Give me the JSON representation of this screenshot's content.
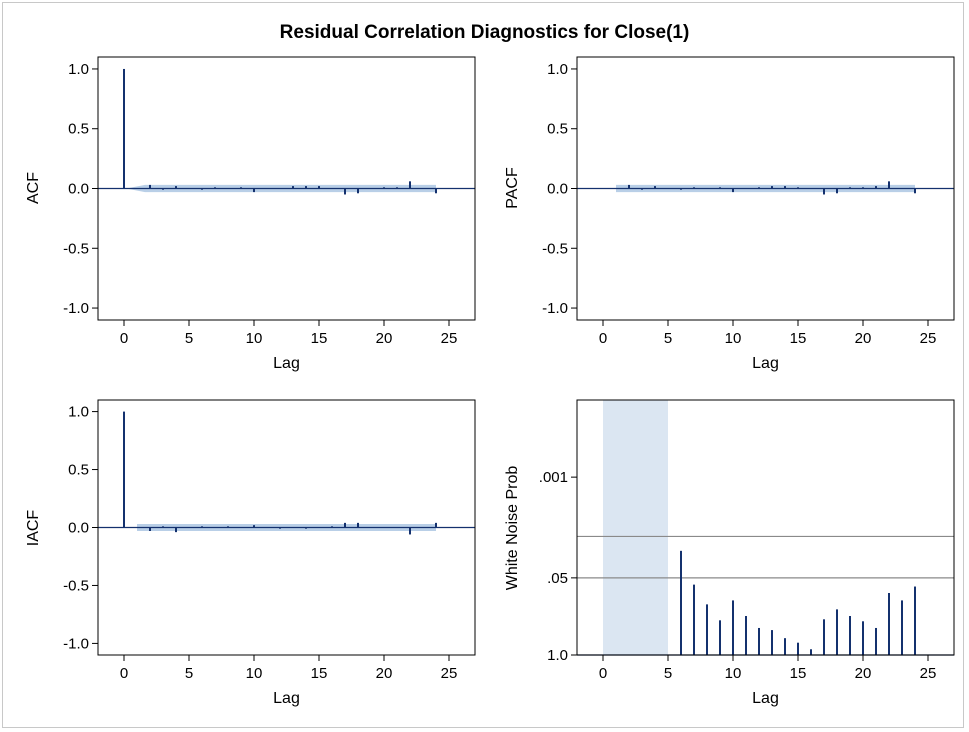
{
  "title": "Residual Correlation Diagnostics for Close(1)",
  "colors": {
    "stick": "#14316e",
    "band": "#b9cfe7",
    "band_light": "#dbe6f2",
    "axis": "#000000",
    "ref": "#8a8a8a"
  },
  "chart_data": [
    {
      "type": "bar",
      "ylabel": "ACF",
      "xlabel": "Lag",
      "xlim": [
        -2,
        27
      ],
      "ylim": [
        -1.1,
        1.1
      ],
      "xticks": [
        "0",
        "5",
        "10",
        "15",
        "20",
        "25"
      ],
      "yticks": [
        "1.0",
        "0.5",
        "0.0",
        "-0.5",
        "-1.0"
      ],
      "lags": [
        0,
        1,
        2,
        3,
        4,
        5,
        6,
        7,
        8,
        9,
        10,
        11,
        12,
        13,
        14,
        15,
        16,
        17,
        18,
        19,
        20,
        21,
        22,
        23,
        24
      ],
      "values": [
        1.0,
        0.0,
        0.03,
        -0.01,
        0.02,
        0.0,
        -0.01,
        0.01,
        0.0,
        0.01,
        -0.03,
        0.0,
        0.0,
        0.02,
        0.02,
        0.02,
        0.0,
        -0.05,
        -0.04,
        0.0,
        0.01,
        0.01,
        0.06,
        0.0,
        -0.04
      ],
      "confidence_band": 0.03
    },
    {
      "type": "bar",
      "ylabel": "PACF",
      "xlabel": "Lag",
      "xlim": [
        -2,
        27
      ],
      "ylim": [
        -1.1,
        1.1
      ],
      "xticks": [
        "0",
        "5",
        "10",
        "15",
        "20",
        "25"
      ],
      "yticks": [
        "1.0",
        "0.5",
        "0.0",
        "-0.5",
        "-1.0"
      ],
      "lags": [
        1,
        2,
        3,
        4,
        5,
        6,
        7,
        8,
        9,
        10,
        11,
        12,
        13,
        14,
        15,
        16,
        17,
        18,
        19,
        20,
        21,
        22,
        23,
        24
      ],
      "values": [
        0.0,
        0.03,
        -0.01,
        0.02,
        0.0,
        -0.01,
        0.01,
        0.0,
        0.01,
        -0.03,
        0.0,
        0.01,
        0.02,
        0.02,
        0.01,
        0.0,
        -0.05,
        -0.04,
        0.01,
        0.01,
        0.02,
        0.06,
        0.0,
        -0.04
      ],
      "confidence_band": 0.03
    },
    {
      "type": "bar",
      "ylabel": "IACF",
      "xlabel": "Lag",
      "xlim": [
        -2,
        27
      ],
      "ylim": [
        -1.1,
        1.1
      ],
      "xticks": [
        "0",
        "5",
        "10",
        "15",
        "20",
        "25"
      ],
      "yticks": [
        "1.0",
        "0.5",
        "0.0",
        "-0.5",
        "-1.0"
      ],
      "lags": [
        0,
        1,
        2,
        3,
        4,
        5,
        6,
        7,
        8,
        9,
        10,
        11,
        12,
        13,
        14,
        15,
        16,
        17,
        18,
        19,
        20,
        21,
        22,
        23,
        24
      ],
      "values": [
        1.0,
        0.0,
        -0.03,
        0.01,
        -0.04,
        0.0,
        0.01,
        0.0,
        0.01,
        0.0,
        0.02,
        0.0,
        -0.01,
        0.0,
        -0.01,
        0.0,
        0.01,
        0.04,
        0.04,
        0.0,
        0.0,
        0.0,
        -0.06,
        0.0,
        0.04
      ],
      "confidence_band": 0.03
    },
    {
      "type": "bar",
      "ylabel": "White Noise Prob",
      "xlabel": "Lag",
      "xlim": [
        -2,
        27
      ],
      "ylog": true,
      "ylim": [
        1.0,
        5e-05
      ],
      "xticks": [
        "0",
        "5",
        "10",
        "15",
        "20",
        "25"
      ],
      "yticks": [
        ".001",
        ".05",
        "1.0"
      ],
      "yticks_values": [
        0.001,
        0.05,
        1.0
      ],
      "reference_lines": [
        0.01,
        0.05
      ],
      "shaded_lags": [
        0,
        5
      ],
      "lags": [
        6,
        7,
        8,
        9,
        10,
        11,
        12,
        13,
        14,
        15,
        16,
        17,
        18,
        19,
        20,
        21,
        22,
        23,
        24
      ],
      "values": [
        0.0175,
        0.065,
        0.14,
        0.26,
        0.12,
        0.22,
        0.35,
        0.38,
        0.52,
        0.62,
        0.8,
        0.25,
        0.17,
        0.22,
        0.27,
        0.35,
        0.09,
        0.12,
        0.07
      ]
    }
  ]
}
